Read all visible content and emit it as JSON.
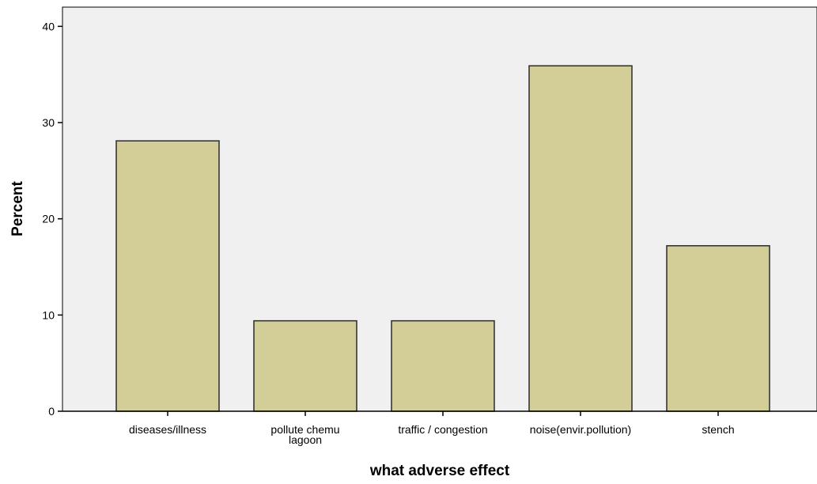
{
  "chart_data": {
    "type": "bar",
    "title": "",
    "xlabel": "what adverse effect",
    "ylabel": "Percent",
    "categories": [
      [
        "diseases/illness"
      ],
      [
        "pollute chemu",
        "lagoon"
      ],
      [
        "traffic / congestion"
      ],
      [
        "noise(envir.pollution)"
      ],
      [
        "stench"
      ]
    ],
    "values": [
      28.1,
      9.4,
      9.4,
      35.9,
      17.2
    ],
    "ylim": [
      0,
      42
    ],
    "yticks": [
      0,
      10,
      20,
      30,
      40
    ],
    "grid": false,
    "legend": "none",
    "colors": {
      "plot_background": "#f0f0f0",
      "bar_fill": "#d3ce97",
      "bar_stroke": "#2b2b2b",
      "axis": "#000000",
      "text": "#000000"
    }
  }
}
